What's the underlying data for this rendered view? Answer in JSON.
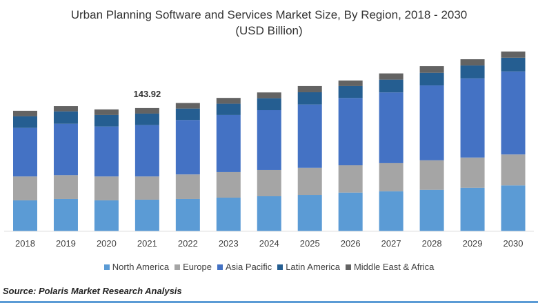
{
  "chart_data": {
    "type": "bar",
    "stacked": true,
    "title": "Urban Planning Software and Services Market Size, By Region, 2018 - 2030",
    "subtitle": "(USD Billion)",
    "xlabel": "",
    "ylabel": "",
    "grid": false,
    "legend_position": "bottom",
    "categories": [
      "2018",
      "2019",
      "2020",
      "2021",
      "2022",
      "2023",
      "2024",
      "2025",
      "2026",
      "2027",
      "2028",
      "2029",
      "2030"
    ],
    "series": [
      {
        "name": "North America",
        "color": "#5b9bd5",
        "values": [
          35.8,
          37.4,
          35.8,
          36.6,
          37.4,
          39.0,
          40.6,
          42.2,
          44.9,
          46.5,
          48.1,
          50.5,
          53.3
        ]
      },
      {
        "name": "Europe",
        "color": "#a5a5a5",
        "values": [
          28.0,
          28.0,
          28.0,
          27.2,
          28.8,
          29.9,
          30.7,
          31.7,
          32.0,
          32.9,
          34.7,
          35.5,
          36.3
        ]
      },
      {
        "name": "Asia Pacific",
        "color": "#4472c4",
        "values": [
          57.0,
          60.2,
          58.6,
          60.2,
          63.8,
          67.0,
          70.2,
          74.3,
          78.9,
          82.9,
          87.7,
          92.8,
          97.3
        ]
      },
      {
        "name": "Latin America",
        "color": "#255e91",
        "values": [
          13.5,
          14.5,
          13.5,
          13.5,
          13.4,
          13.2,
          14.0,
          14.3,
          14.0,
          15.0,
          14.8,
          15.1,
          16.1
        ]
      },
      {
        "name": "Middle East & Africa",
        "color": "#636363",
        "values": [
          6.5,
          6.2,
          6.5,
          6.5,
          6.5,
          6.8,
          6.8,
          7.3,
          6.5,
          7.3,
          7.8,
          7.3,
          7.3
        ]
      }
    ],
    "annotations": [
      {
        "category": "2021",
        "text": "143.92"
      }
    ]
  },
  "source": "Source: Polaris  Market Research Analysis"
}
